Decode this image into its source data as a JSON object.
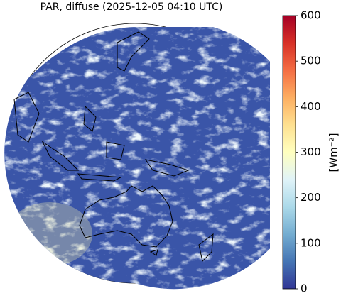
{
  "map": {
    "title": "PAR, diffuse (2025-12-05 04:10 UTC)",
    "colorbar": {
      "label": "[Wm⁻²]",
      "lim": [
        0,
        600
      ],
      "ticks": [
        0,
        100,
        200,
        300,
        400,
        500,
        600
      ],
      "colors": [
        "#313695",
        "#4575b4",
        "#74add1",
        "#abd9e9",
        "#e0f3f8",
        "#ffffbf",
        "#fee090",
        "#fdae61",
        "#f46d43",
        "#d73027",
        "#a50026"
      ]
    }
  }
}
